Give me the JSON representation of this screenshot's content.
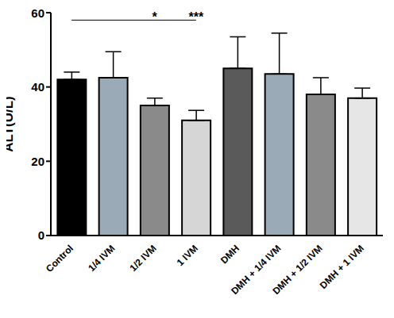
{
  "chart_data": {
    "type": "bar",
    "y_label": "ALT(U/L)",
    "categories": [
      "Control",
      "1/4 IVM",
      "1/2 IVM",
      "1 IVM",
      "DMH",
      "DMH + 1/4 IVM",
      "DMH + 1/2 IVM",
      "DMH + 1 IVM"
    ],
    "values": [
      42,
      42.5,
      35,
      31,
      45,
      43.5,
      38,
      37
    ],
    "errors": [
      2,
      7,
      2,
      2.7,
      8.5,
      11,
      4.5,
      2.7
    ],
    "colors": [
      "#000000",
      "#9aabb7",
      "#8a8a8a",
      "#d6d6d6",
      "#5a5a5a",
      "#9aabb7",
      "#8a8a8a",
      "#e6e6e6"
    ],
    "ylim": [
      0,
      60
    ],
    "yticks": [
      0,
      20,
      40,
      60
    ],
    "grid": false,
    "significance": {
      "from": "Control",
      "to": "1 IVM",
      "y": 58,
      "marks": [
        {
          "category": "1/2 IVM",
          "label": "*"
        },
        {
          "category": "1 IVM",
          "label": "***"
        }
      ]
    }
  }
}
